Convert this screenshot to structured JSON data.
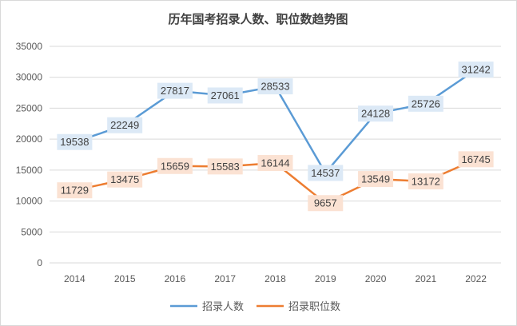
{
  "chart_data": {
    "type": "line",
    "title": "历年国考招录人数、职位数趋势图",
    "categories": [
      "2014",
      "2015",
      "2016",
      "2017",
      "2018",
      "2019",
      "2020",
      "2021",
      "2022"
    ],
    "series": [
      {
        "name": "招录人数",
        "values": [
          19538,
          22249,
          27817,
          27061,
          28533,
          14537,
          24128,
          25726,
          31242
        ],
        "color": "#5b9bd5",
        "label_bg": "#dce9f6"
      },
      {
        "name": "招录职位数",
        "values": [
          11729,
          13475,
          15659,
          15583,
          16144,
          9657,
          13549,
          13172,
          16745
        ],
        "color": "#ed7d31",
        "label_bg": "#fbe2d3"
      }
    ],
    "ylim": [
      0,
      35000
    ],
    "yticks": [
      0,
      5000,
      10000,
      15000,
      20000,
      25000,
      30000,
      35000
    ],
    "ytick_labels": [
      "0",
      "5000",
      "10000",
      "15000",
      "20000",
      "25000",
      "30000",
      "35000"
    ],
    "grid": true,
    "legend_position": "bottom",
    "gridline_color": "#d9d9d9"
  }
}
